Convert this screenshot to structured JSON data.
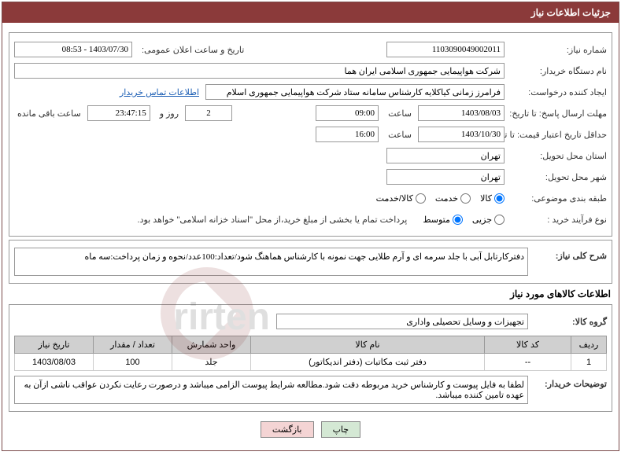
{
  "header": {
    "title": "جزئیات اطلاعات نیاز"
  },
  "fields": {
    "need_number_label": "شماره نیاز:",
    "need_number": "1103090049002011",
    "announce_label": "تاریخ و ساعت اعلان عمومی:",
    "announce_value": "1403/07/30 - 08:53",
    "buyer_org_label": "نام دستگاه خریدار:",
    "buyer_org": "شرکت هواپیمایی جمهوری اسلامی ایران هما",
    "requester_label": "ایجاد کننده درخواست:",
    "requester": "فرامرز زمانی کیاکلایه کارشناس سامانه ستاد شرکت هواپیمایی جمهوری اسلام",
    "contact_link": "اطلاعات تماس خریدار",
    "deadline_label": "مهلت ارسال پاسخ: تا تاریخ:",
    "deadline_date": "1403/08/03",
    "time_label": "ساعت",
    "deadline_time": "09:00",
    "days_count": "2",
    "days_and": "روز و",
    "countdown": "23:47:15",
    "remaining": "ساعت باقی مانده",
    "validity_label": "حداقل تاریخ اعتبار قیمت: تا تاریخ:",
    "validity_date": "1403/10/30",
    "validity_time": "16:00",
    "province_label": "استان محل تحویل:",
    "province": "تهران",
    "city_label": "شهر محل تحویل:",
    "city": "تهران",
    "category_label": "طبقه بندی موضوعی:",
    "cat_goods": "کالا",
    "cat_service": "خدمت",
    "cat_both": "کالا/خدمت",
    "process_label": "نوع فرآیند خرید :",
    "proc_partial": "جزیی",
    "proc_medium": "متوسط",
    "payment_note": "پرداخت تمام یا بخشی از مبلغ خرید،از محل \"اسناد خزانه اسلامی\" خواهد بود.",
    "desc_label": "شرح کلی نیاز:",
    "desc_text": "دفترکارتابل آبی با جلد سرمه ای و آرم طلایی جهت نمونه با کارشناس هماهنگ شود/تعداد:100عدد/نحوه و زمان پرداخت:سه ماه",
    "items_title": "اطلاعات کالاهای مورد نیاز",
    "group_label": "گروه کالا:",
    "group_value": "تجهیزات و وسایل تحصیلی واداری",
    "buyer_notes_label": "توضیحات خریدار:",
    "buyer_notes": "لطفا به فایل پیوست و کارشناس خرید مربوطه دقت شود.مطالعه شرایط پیوست الزامی میباشد و درصورت رعایت نکردن عواقب ناشی ازآن به عهده تامین کننده میباشد."
  },
  "table": {
    "headers": {
      "row": "ردیف",
      "code": "کد کالا",
      "name": "نام کالا",
      "unit": "واحد شمارش",
      "qty": "تعداد / مقدار",
      "date": "تاریخ نیاز"
    },
    "rows": [
      {
        "row": "1",
        "code": "--",
        "name": "دفتر ثبت مکاتبات (دفتر اندیکاتور)",
        "unit": "جلد",
        "qty": "100",
        "date": "1403/08/03"
      }
    ]
  },
  "buttons": {
    "print": "چاپ",
    "back": "بازگشت"
  },
  "colors": {
    "header_bg": "#8b3a3a",
    "border": "#999999",
    "th_bg": "#d0d0d0",
    "link": "#1a5db4"
  }
}
